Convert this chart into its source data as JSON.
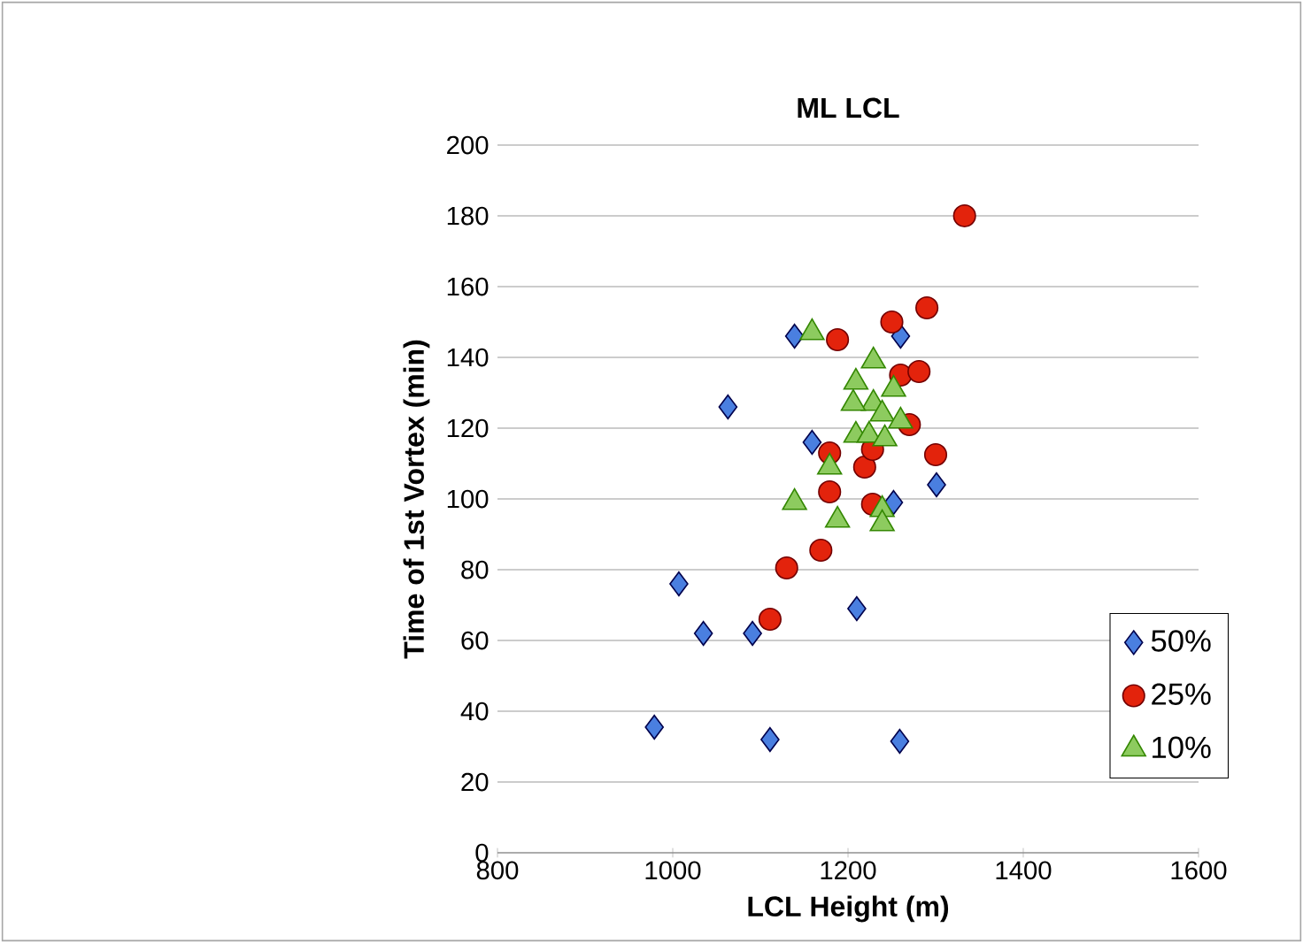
{
  "chart_data": {
    "type": "scatter",
    "title": "ML LCL",
    "xlabel": "LCL Height (m)",
    "ylabel": "Time of 1st Vortex (min)",
    "xlim": [
      800,
      1600
    ],
    "xticks": [
      800,
      1000,
      1200,
      1400,
      1600
    ],
    "ylim": [
      0,
      200
    ],
    "yticks": [
      0,
      20,
      40,
      60,
      80,
      100,
      120,
      140,
      160,
      180,
      200
    ],
    "grid": "y",
    "legend": "bottom right",
    "series": [
      {
        "name": "50%",
        "color": "#4a7fe0",
        "marker": "diamond",
        "x": [
          979,
          1007,
          1035,
          1063,
          1091,
          1111,
          1139,
          1159,
          1210,
          1252,
          1260,
          1259,
          1301
        ],
        "values": [
          35.5,
          76,
          62,
          126,
          62,
          32,
          146,
          116,
          69,
          99,
          146,
          31.5,
          104
        ]
      },
      {
        "name": "25%",
        "color": "#e3230c",
        "marker": "circle",
        "x": [
          1333,
          1290,
          1250,
          1188,
          1260,
          1281,
          1270,
          1300,
          1179,
          1219,
          1228,
          1179,
          1228,
          1169,
          1130,
          1111
        ],
        "values": [
          180,
          154,
          150,
          145,
          135,
          136,
          121,
          112.5,
          113,
          109,
          114,
          102,
          98.5,
          85.5,
          80.5,
          66
        ]
      },
      {
        "name": "10%",
        "color": "#8dcb5f",
        "marker": "triangle",
        "x": [
          1159,
          1229,
          1209,
          1252,
          1229,
          1206,
          1239,
          1260,
          1209,
          1224,
          1242,
          1179,
          1139,
          1188,
          1239,
          1239
        ],
        "values": [
          147,
          139,
          133,
          131,
          127,
          127,
          124,
          122,
          118,
          118,
          117,
          109,
          99,
          94,
          97,
          93
        ]
      }
    ]
  }
}
